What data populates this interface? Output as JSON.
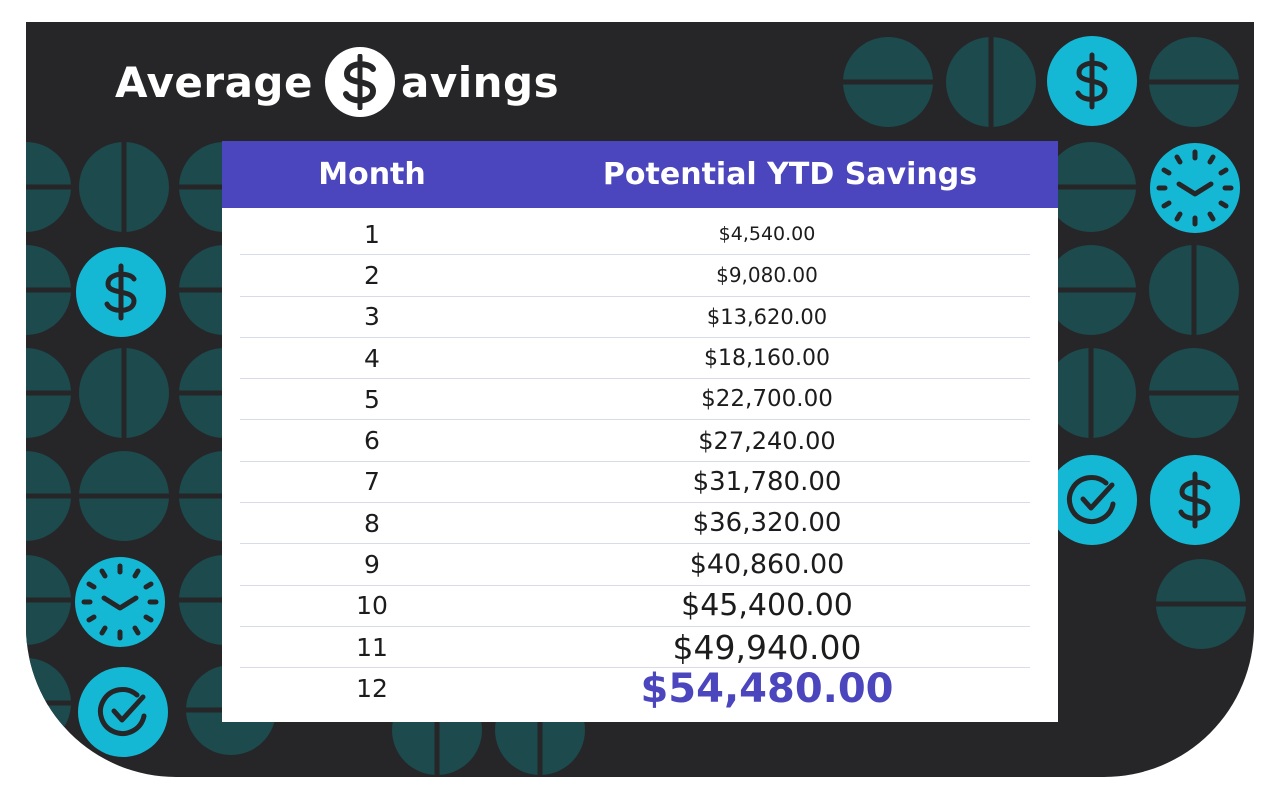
{
  "title": {
    "left": "Average",
    "right": "avings",
    "badge_icon": "dollar-icon"
  },
  "table": {
    "headers": {
      "month": "Month",
      "savings": "Potential YTD Savings"
    },
    "rows": [
      {
        "month": "1",
        "savings": "$4,540.00"
      },
      {
        "month": "2",
        "savings": "$9,080.00"
      },
      {
        "month": "3",
        "savings": "$13,620.00"
      },
      {
        "month": "4",
        "savings": "$18,160.00"
      },
      {
        "month": "5",
        "savings": "$22,700.00"
      },
      {
        "month": "6",
        "savings": "$27,240.00"
      },
      {
        "month": "7",
        "savings": "$31,780.00"
      },
      {
        "month": "8",
        "savings": "$36,320.00"
      },
      {
        "month": "9",
        "savings": "$40,860.00"
      },
      {
        "month": "10",
        "savings": "$45,400.00"
      },
      {
        "month": "11",
        "savings": "$49,940.00"
      },
      {
        "month": "12",
        "savings": "$54,480.00"
      }
    ]
  },
  "colors": {
    "background": "#262629",
    "header": "#4b46bd",
    "accent_cyan": "#14b8d4",
    "dark_teal": "#1c4a4d",
    "highlight": "#4b46bd"
  },
  "icons": [
    "dollar-icon",
    "clock-icon",
    "check-circle-icon"
  ]
}
